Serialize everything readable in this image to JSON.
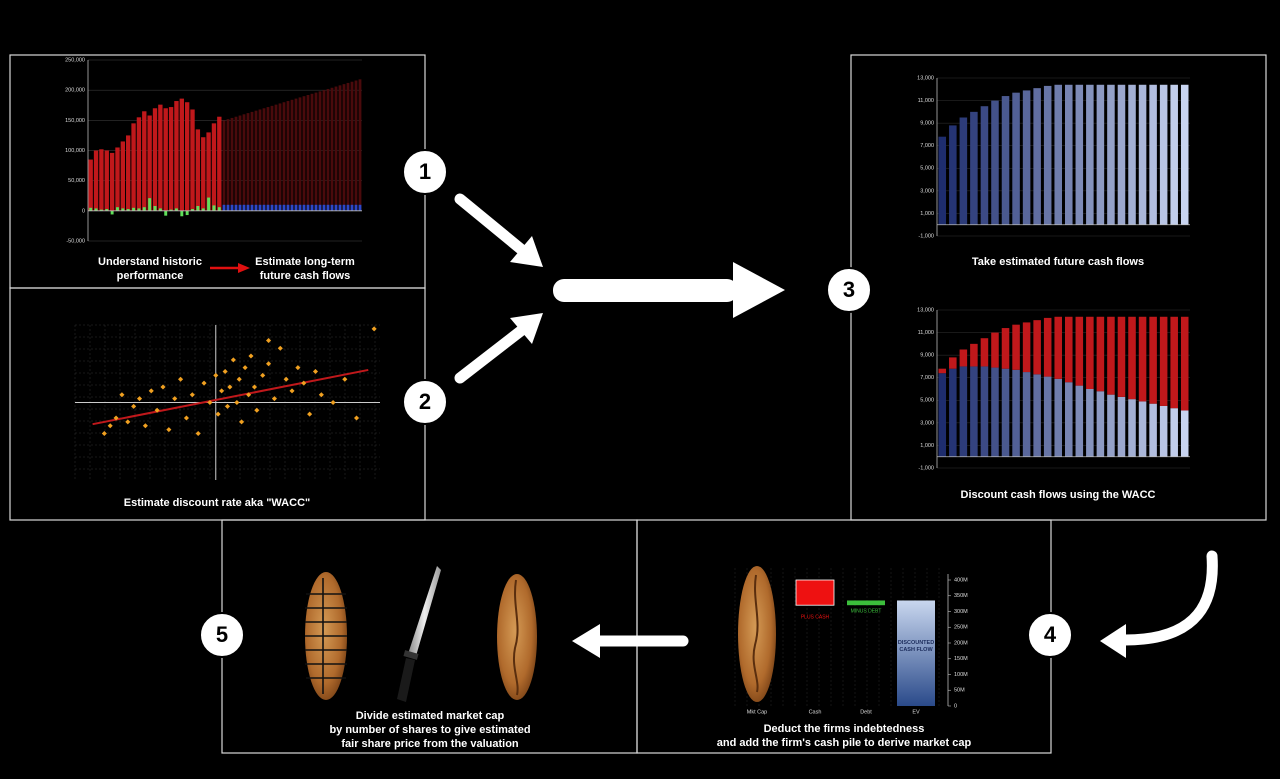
{
  "steps": [
    "1",
    "2",
    "3",
    "4",
    "5"
  ],
  "history": {
    "caption_left": [
      "Understand historic",
      "performance"
    ],
    "caption_right": [
      "Estimate long-term",
      "future cash flows"
    ],
    "chart": {
      "ylim": [
        -50000,
        250000
      ],
      "yticks": [
        {
          "value": 250000,
          "label": "250,000"
        },
        {
          "value": 200000,
          "label": "200,000"
        },
        {
          "value": 150000,
          "label": "150,000"
        },
        {
          "value": 100000,
          "label": "100,000"
        },
        {
          "value": 50000,
          "label": "50,000"
        },
        0,
        {
          "value": -50000,
          "label": "-50,000"
        }
      ],
      "historic": {
        "color": "#c0181b",
        "values": [
          85000,
          100000,
          102000,
          100000,
          96000,
          105000,
          115000,
          125000,
          145000,
          155000,
          165000,
          158000,
          170000,
          176000,
          170000,
          172000,
          182000,
          186000,
          180000,
          168000,
          135000,
          122000,
          130000,
          145000,
          156000
        ]
      },
      "historic_change": {
        "color": "#5fe05a",
        "values": [
          5000,
          4000,
          2000,
          3000,
          -6000,
          6000,
          4000,
          3000,
          5000,
          4000,
          6000,
          21000,
          8000,
          4000,
          -8000,
          2000,
          4000,
          -9000,
          -7000,
          3000,
          8000,
          4000,
          22000,
          9000,
          6000
        ]
      },
      "forecast": {
        "color": "#4a0a0c",
        "values": [
          150000,
          152000,
          154000,
          156000,
          158000,
          160000,
          162000,
          164000,
          166000,
          168000,
          170000,
          172000,
          174000,
          176000,
          178000,
          180000,
          182000,
          184000,
          186000,
          188000,
          190000,
          192000,
          194000,
          196000,
          198000,
          200000,
          202000,
          204000,
          206000,
          208000,
          210000,
          212000,
          214000,
          216000,
          218000
        ]
      },
      "forecast_change": {
        "color": "#2d48c8",
        "values": [
          10000,
          10000,
          10000,
          10000,
          10000,
          10000,
          10000,
          10000,
          10000,
          10000,
          10000,
          10000,
          10000,
          10000,
          10000,
          10000,
          10000,
          10000,
          10000,
          10000,
          10000,
          10000,
          10000,
          10000,
          10000,
          10000,
          10000,
          10000,
          10000,
          10000,
          10000,
          10000,
          10000,
          10000,
          10000
        ]
      }
    }
  },
  "wacc": {
    "caption": "Estimate discount rate aka \"WACC\"",
    "chart": {
      "xlim": [
        -1.2,
        1.4
      ],
      "ylim": [
        -1,
        1
      ],
      "color": "#f0a020",
      "x": [
        -0.95,
        -0.9,
        -0.85,
        -0.8,
        -0.75,
        -0.7,
        -0.6,
        -0.55,
        -0.5,
        -0.45,
        -0.4,
        -0.35,
        -0.3,
        -0.25,
        -0.2,
        -0.15,
        -0.1,
        -0.05,
        0,
        0.02,
        0.05,
        0.08,
        0.1,
        0.12,
        0.15,
        0.18,
        0.2,
        0.22,
        0.25,
        0.28,
        0.3,
        0.33,
        0.35,
        0.4,
        0.45,
        0.5,
        0.55,
        0.6,
        0.65,
        0.7,
        0.75,
        0.8,
        0.85,
        0.9,
        1.0,
        1.1,
        1.2,
        1.35,
        -0.65,
        0.45
      ],
      "y": [
        -0.4,
        -0.3,
        -0.2,
        0.1,
        -0.25,
        -0.05,
        -0.3,
        0.15,
        -0.1,
        0.2,
        -0.35,
        0.05,
        0.3,
        -0.2,
        0.1,
        -0.4,
        0.25,
        0.0,
        0.35,
        -0.15,
        0.15,
        0.4,
        -0.05,
        0.2,
        0.55,
        0.0,
        0.3,
        -0.25,
        0.45,
        0.1,
        0.6,
        0.2,
        -0.1,
        0.35,
        0.5,
        0.05,
        0.7,
        0.3,
        0.15,
        0.45,
        0.25,
        -0.15,
        0.4,
        0.1,
        0.0,
        0.3,
        -0.2,
        0.95,
        0.05,
        0.8
      ],
      "trend": {
        "color": "#c0181b",
        "x": [
          -1.05,
          1.3
        ],
        "y": [
          -0.28,
          0.42
        ]
      }
    }
  },
  "forecast": {
    "caption_top": "Take estimated future cash flows",
    "caption_bottom": "Discount cash flows using the WACC",
    "ylim": [
      -1000,
      13000
    ],
    "yticks": [
      {
        "value": 13000,
        "label": "13,000"
      },
      {
        "value": 11000,
        "label": "11,000"
      },
      {
        "value": 9000,
        "label": "9,000"
      },
      {
        "value": 7000,
        "label": "7,000"
      },
      {
        "value": 5000,
        "label": "5,000"
      },
      {
        "value": 3000,
        "label": "3,000"
      },
      {
        "value": 1000,
        "label": "1,000"
      },
      {
        "value": -1000,
        "label": "-1,000"
      }
    ],
    "cash_flows": [
      7800,
      8800,
      9500,
      10000,
      10500,
      11000,
      11400,
      11700,
      11900,
      12100,
      12300,
      12400,
      12400,
      12400,
      12400,
      12400,
      12400,
      12400,
      12400,
      12400,
      12400,
      12400,
      12400,
      12400
    ],
    "discounted": [
      7400,
      7800,
      8000,
      8000,
      8000,
      7900,
      7800,
      7700,
      7500,
      7300,
      7100,
      6900,
      6600,
      6300,
      6000,
      5800,
      5500,
      5300,
      5100,
      4900,
      4700,
      4500,
      4300,
      4100
    ],
    "discount": {
      "color": "#c0181b",
      "values": [
        400,
        1000,
        1500,
        2000,
        2500,
        3100,
        3600,
        4000,
        4400,
        4800,
        5200,
        5500,
        5800,
        6100,
        6400,
        6600,
        6900,
        7100,
        7300,
        7500,
        7700,
        7900,
        8100,
        8300
      ]
    }
  },
  "bridge": {
    "caption": [
      "Deduct the firms indebtedness",
      "and add the firm's cash pile to derive market cap"
    ],
    "categories": [
      "Mkt Cap",
      "Cash",
      "Debt",
      "EV"
    ],
    "ylim": [
      0,
      400
    ],
    "yticks": [
      {
        "value": 400,
        "label": "400M"
      },
      {
        "value": 350,
        "label": "350M"
      },
      {
        "value": 300,
        "label": "300M"
      },
      {
        "value": 250,
        "label": "250M"
      },
      {
        "value": 200,
        "label": "200M"
      },
      {
        "value": 150,
        "label": "150M"
      },
      {
        "value": 100,
        "label": "100M"
      },
      {
        "value": 50,
        "label": "50M"
      },
      0
    ],
    "ev": {
      "label": [
        "DISCOUNTED",
        "CASH FLOW"
      ],
      "value": 335
    },
    "debt": {
      "label": "MINUS DEBT",
      "color": "#3cbf3c",
      "value": 15
    },
    "cash": {
      "label": "PLUS CASH",
      "color": "#ee1111",
      "value": 80
    }
  },
  "share_price": {
    "caption": [
      "Divide estimated market cap",
      "by number of shares to give estimated",
      "fair share price from the valuation"
    ]
  }
}
